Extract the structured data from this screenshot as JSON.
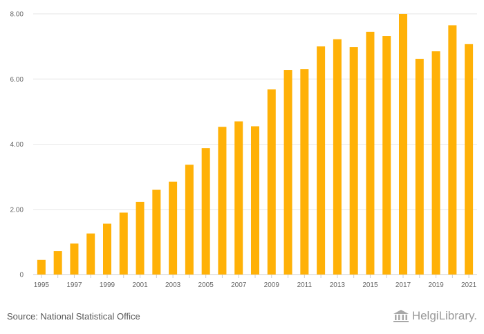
{
  "chart_data": {
    "type": "bar",
    "categories": [
      "1995",
      "1996",
      "1997",
      "1998",
      "1999",
      "2000",
      "2001",
      "2002",
      "2003",
      "2004",
      "2005",
      "2006",
      "2007",
      "2008",
      "2009",
      "2010",
      "2011",
      "2012",
      "2013",
      "2014",
      "2015",
      "2016",
      "2017",
      "2018",
      "2019",
      "2020",
      "2021"
    ],
    "values": [
      0.45,
      0.72,
      0.95,
      1.26,
      1.56,
      1.9,
      2.23,
      2.6,
      2.85,
      3.37,
      3.88,
      4.53,
      4.7,
      4.55,
      5.68,
      6.28,
      6.3,
      7.0,
      7.22,
      6.98,
      7.45,
      7.32,
      8.0,
      6.62,
      6.85,
      7.65,
      7.07
    ],
    "x_tick_labels": [
      "1995",
      "1997",
      "1999",
      "2001",
      "2003",
      "2005",
      "2007",
      "2009",
      "2011",
      "2013",
      "2015",
      "2017",
      "2019",
      "2021"
    ],
    "y_tick_labels": [
      "0",
      "2.00",
      "4.00",
      "6.00",
      "8.00"
    ],
    "y_ticks": [
      0,
      2,
      4,
      6,
      8
    ],
    "ylim": [
      0,
      8
    ],
    "bar_color": "#ffb107",
    "title": "",
    "xlabel": "",
    "ylabel": ""
  },
  "footer": {
    "source": "Source: National Statistical Office",
    "brand": "HelgiLibrary."
  }
}
